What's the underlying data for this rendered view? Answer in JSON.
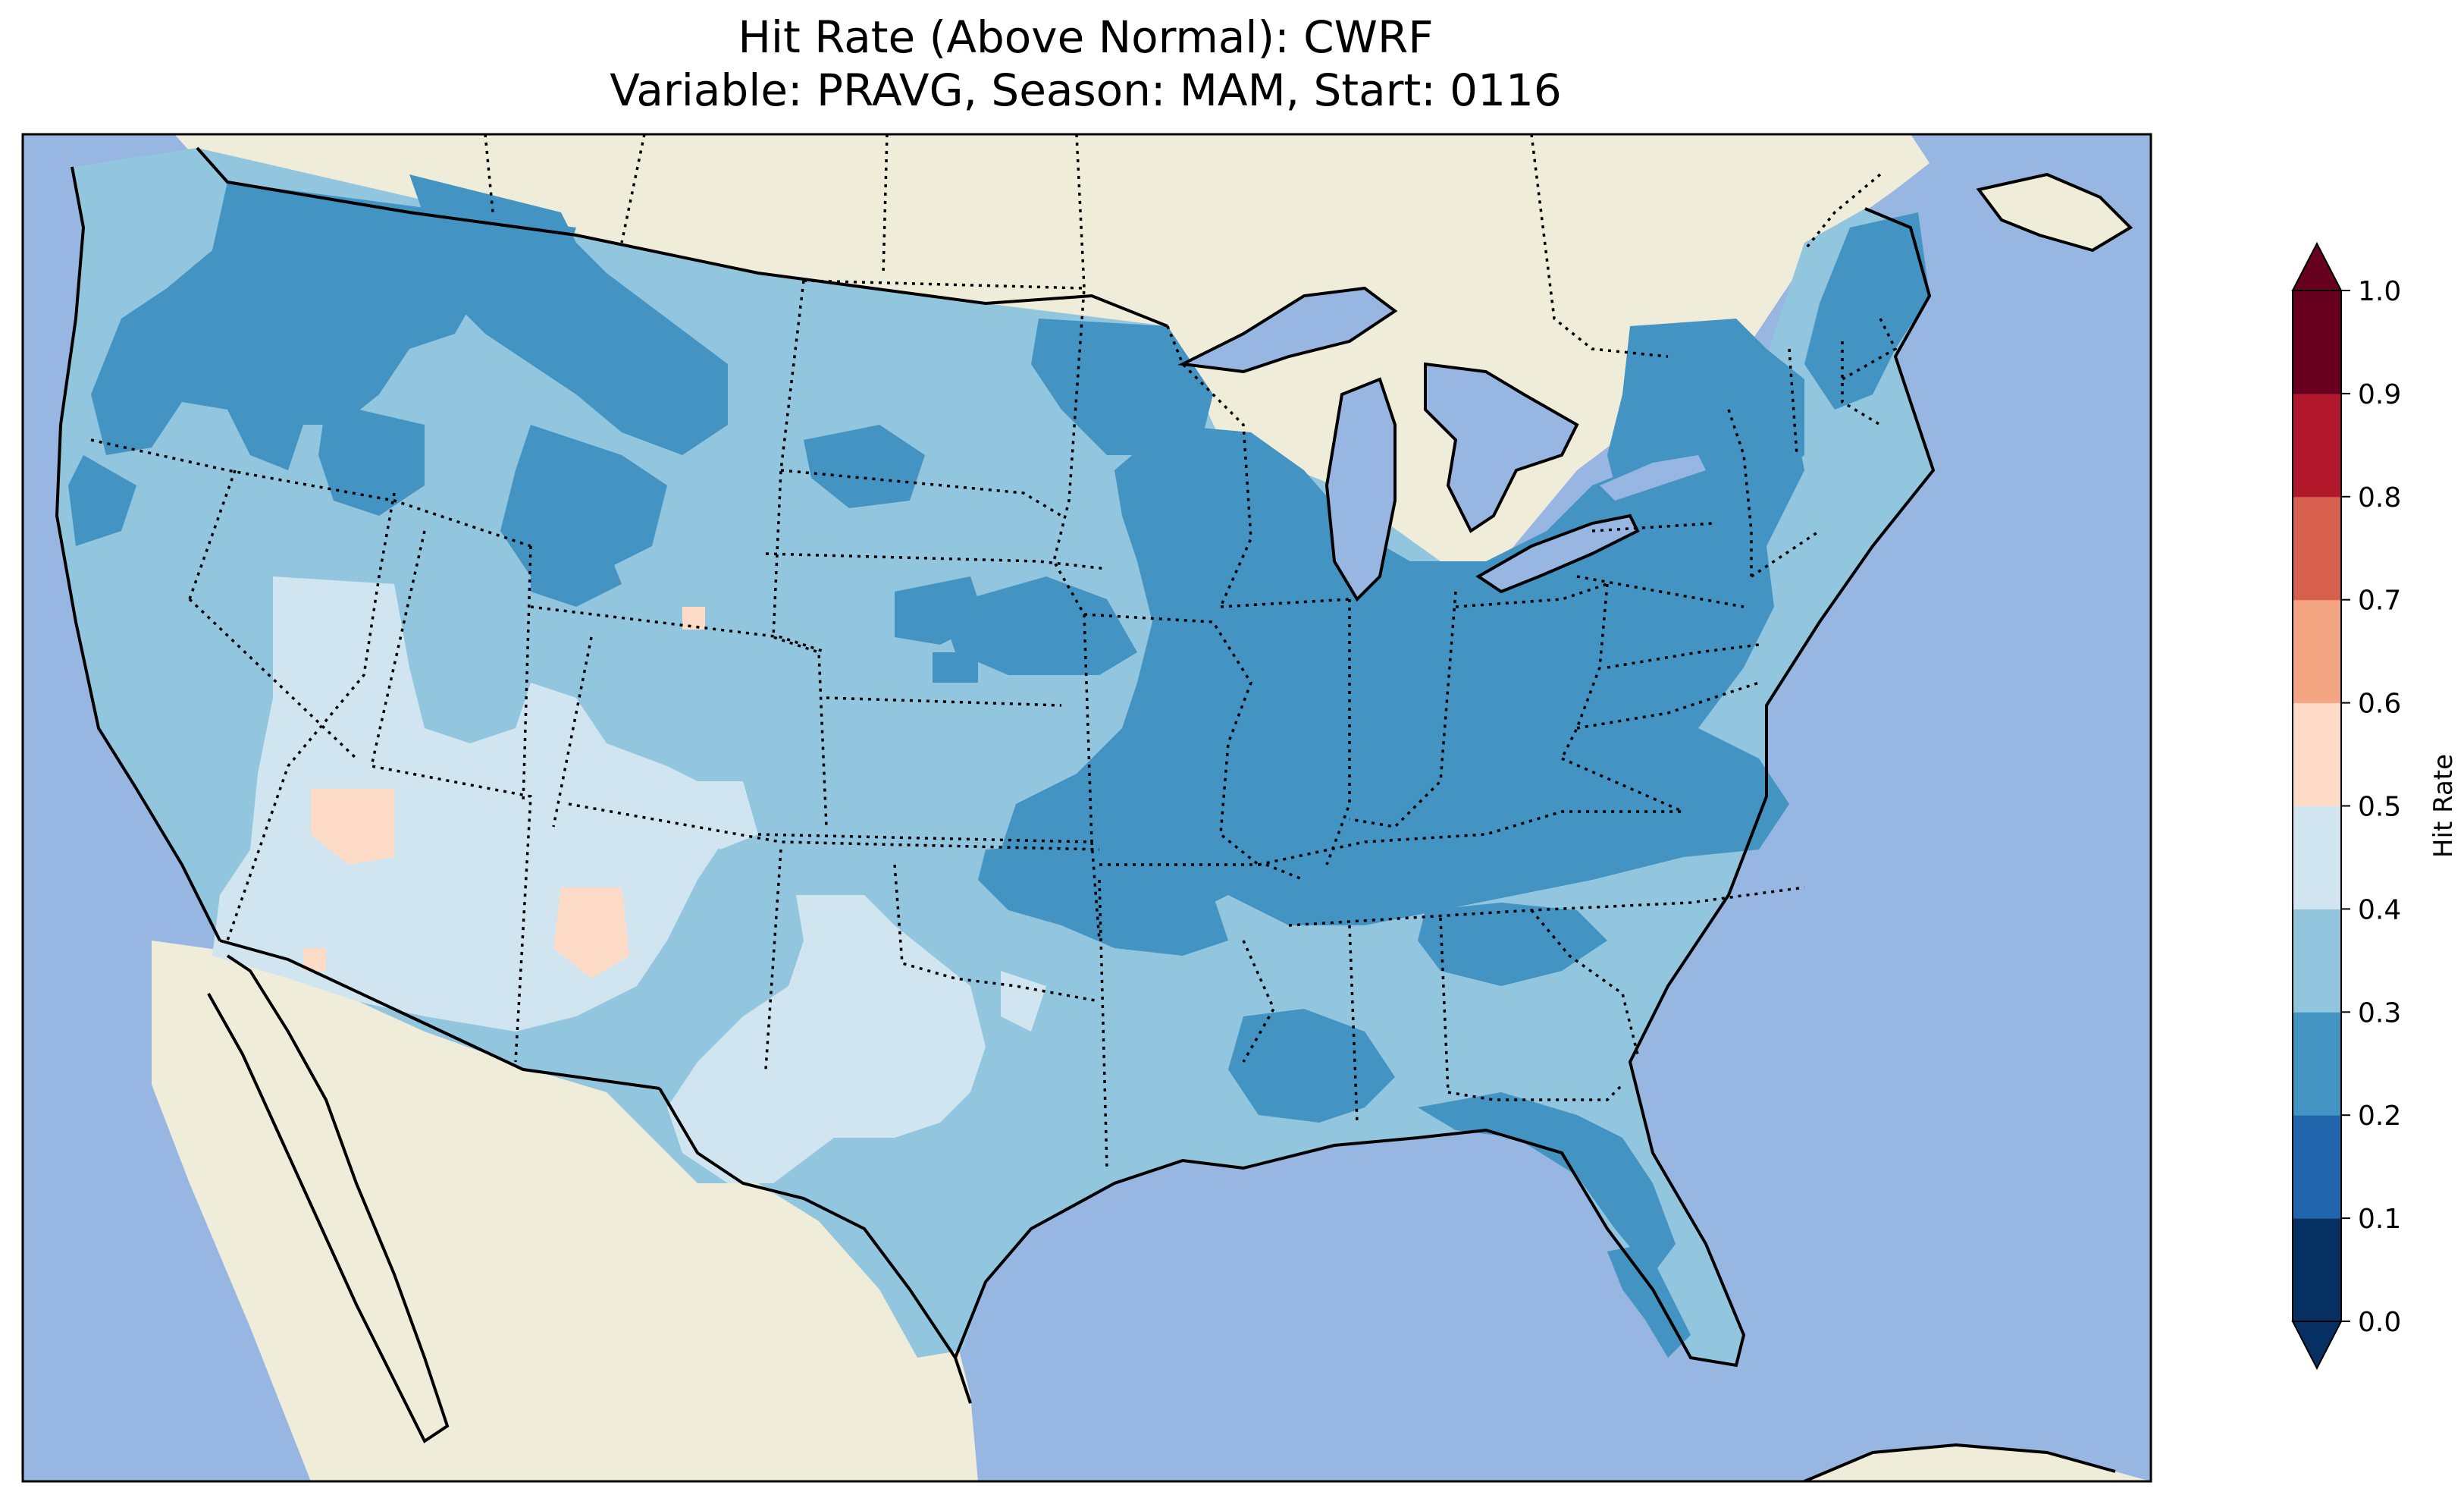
{
  "title": {
    "line1": "Hit Rate (Above Normal): CWRF",
    "line2": "Variable: PRAVG, Season: MAM, Start: 0116"
  },
  "map": {
    "projection": "Lambert Conformal (CONUS)",
    "ocean_color": "#97b6e1",
    "land_color": "#efedda",
    "lake_color": "#97b6e1",
    "state_borders": "dotted",
    "coastlines": "solid"
  },
  "colorbar": {
    "label": "Hit Rate",
    "orientation": "vertical",
    "extend": "both",
    "levels": [
      0.0,
      0.1,
      0.2,
      0.3,
      0.4,
      0.5,
      0.6,
      0.7,
      0.8,
      0.9,
      1.0
    ],
    "tick_labels": [
      "0.0",
      "0.1",
      "0.2",
      "0.3",
      "0.4",
      "0.5",
      "0.6",
      "0.7",
      "0.8",
      "0.9",
      "1.0"
    ],
    "colors": [
      "#053061",
      "#2166ac",
      "#4393c3",
      "#92c5de",
      "#d1e5f0",
      "#fddbc7",
      "#f4a582",
      "#d6604d",
      "#b2182b",
      "#67001f"
    ],
    "min_extend_color": "#053061",
    "max_extend_color": "#67001f"
  },
  "regions": [
    {
      "name": "Pacific Northwest",
      "band": "0.2-0.3",
      "color": "#4393c3"
    },
    {
      "name": "Northern Rockies",
      "band": "0.2-0.3",
      "color": "#4393c3"
    },
    {
      "name": "Great Basin / Southwest",
      "band": "0.4-0.5",
      "color": "#d1e5f0"
    },
    {
      "name": "Southern Nevada / Arizona spots",
      "band": "0.5-0.6",
      "color": "#fddbc7"
    },
    {
      "name": "Great Plains",
      "band": "0.3-0.4",
      "color": "#92c5de"
    },
    {
      "name": "West Texas",
      "band": "0.4-0.5",
      "color": "#d1e5f0"
    },
    {
      "name": "Midwest / Ohio Valley",
      "band": "0.2-0.3",
      "color": "#4393c3"
    },
    {
      "name": "Northeast",
      "band": "0.2-0.3",
      "color": "#4393c3"
    },
    {
      "name": "Southeast",
      "band": "0.3-0.4",
      "color": "#92c5de"
    },
    {
      "name": "Florida",
      "band": "0.2-0.3",
      "color": "#4393c3"
    }
  ]
}
